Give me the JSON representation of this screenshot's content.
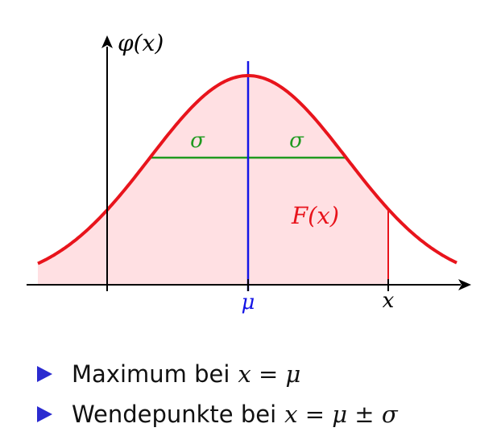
{
  "diagram": {
    "y_axis_label": "φ(x)",
    "area_label": "F(x)",
    "mu_label": "μ",
    "x_label": "x",
    "sigma_left_label": "σ",
    "sigma_right_label": "σ",
    "colors": {
      "curve": "#e8141c",
      "fill": "#ffe0e3",
      "mean_line": "#1414e6",
      "sigma_line": "#1f9a1f",
      "axes": "#000000",
      "bullet": "#2b2bd0"
    }
  },
  "bullets": [
    {
      "text": "Maximum bei",
      "formula": "x = μ"
    },
    {
      "text": "Wendepunkte bei",
      "formula": "x = μ ± σ"
    }
  ]
}
